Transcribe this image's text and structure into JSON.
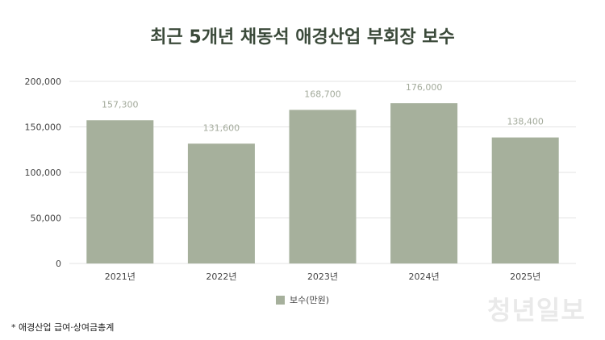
{
  "title": "최근 5개년 채동석 애경산업 부회장 보수",
  "footnote": "* 애경산업 급여·상여금총계",
  "logo_text": "청년일보",
  "chart_data": {
    "type": "bar",
    "categories": [
      "2021년",
      "2022년",
      "2023년",
      "2024년",
      "2025년"
    ],
    "series": [
      {
        "name": "보수(만원)",
        "values": [
          157300,
          131600,
          168700,
          176000,
          138400
        ]
      }
    ],
    "data_labels": [
      "157,300",
      "131,600",
      "168,700",
      "176,000",
      "138,400"
    ],
    "y_ticks": [
      0,
      50000,
      100000,
      150000,
      200000
    ],
    "y_tick_labels": [
      "0",
      "50,000",
      "100,000",
      "150,000",
      "200,000"
    ],
    "ylim": [
      0,
      200000
    ],
    "grid": true,
    "legend_position": "bottom",
    "bar_color": "#a6b09c",
    "grid_color": "#e3e3e3"
  }
}
